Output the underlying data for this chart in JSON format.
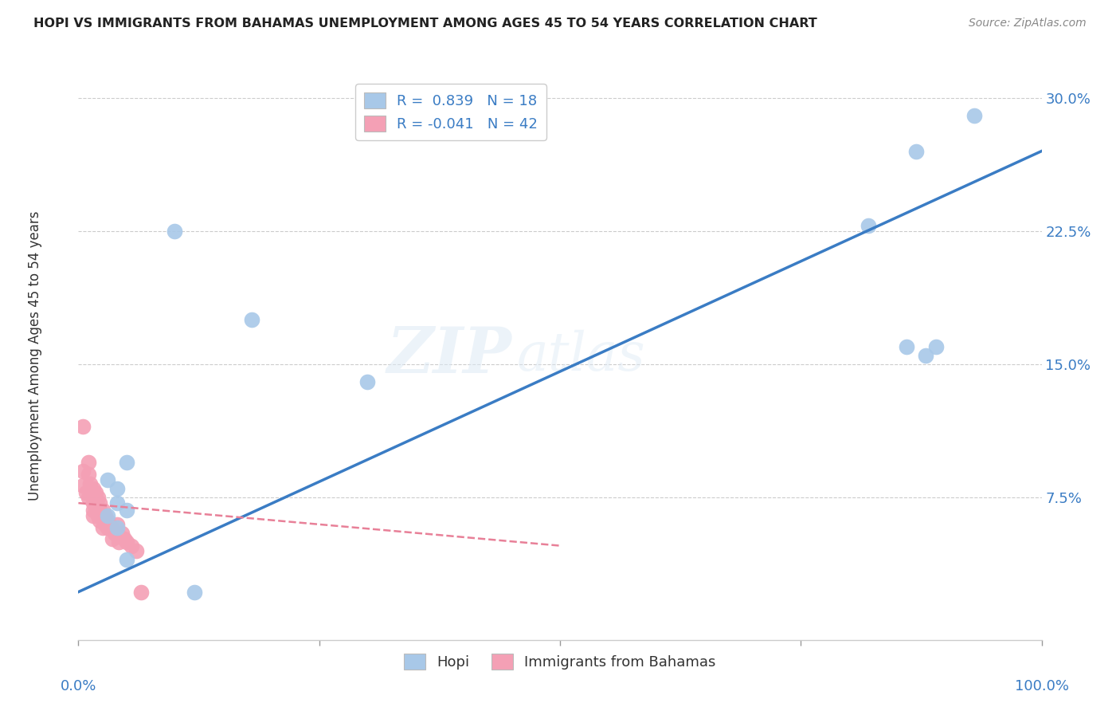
{
  "title": "HOPI VS IMMIGRANTS FROM BAHAMAS UNEMPLOYMENT AMONG AGES 45 TO 54 YEARS CORRELATION CHART",
  "source": "Source: ZipAtlas.com",
  "ylabel": "Unemployment Among Ages 45 to 54 years",
  "xlim": [
    0.0,
    1.0
  ],
  "ylim": [
    -0.005,
    0.315
  ],
  "yticks": [
    0.0,
    0.075,
    0.15,
    0.225,
    0.3
  ],
  "ytick_labels": [
    "",
    "7.5%",
    "15.0%",
    "22.5%",
    "30.0%"
  ],
  "hopi_color": "#a8c8e8",
  "bahamas_color": "#f4a0b5",
  "hopi_line_color": "#3a7cc4",
  "bahamas_line_color": "#e88098",
  "legend_hopi_R": "0.839",
  "legend_hopi_N": "18",
  "legend_bahamas_R": "-0.041",
  "legend_bahamas_N": "42",
  "hopi_x": [
    0.1,
    0.18,
    0.03,
    0.05,
    0.04,
    0.04,
    0.05,
    0.03,
    0.3,
    0.04,
    0.05,
    0.82,
    0.87,
    0.93,
    0.89,
    0.88,
    0.86,
    0.12
  ],
  "hopi_y": [
    0.225,
    0.175,
    0.085,
    0.095,
    0.08,
    0.072,
    0.068,
    0.065,
    0.14,
    0.058,
    0.04,
    0.228,
    0.27,
    0.29,
    0.16,
    0.155,
    0.16,
    0.022
  ],
  "bahamas_x": [
    0.005,
    0.005,
    0.005,
    0.008,
    0.01,
    0.01,
    0.01,
    0.012,
    0.015,
    0.015,
    0.015,
    0.015,
    0.015,
    0.018,
    0.018,
    0.018,
    0.02,
    0.02,
    0.02,
    0.022,
    0.022,
    0.022,
    0.025,
    0.025,
    0.025,
    0.028,
    0.028,
    0.03,
    0.03,
    0.032,
    0.035,
    0.035,
    0.038,
    0.04,
    0.04,
    0.042,
    0.045,
    0.048,
    0.05,
    0.055,
    0.06,
    0.065
  ],
  "bahamas_y": [
    0.115,
    0.09,
    0.082,
    0.078,
    0.095,
    0.088,
    0.075,
    0.083,
    0.08,
    0.075,
    0.072,
    0.068,
    0.065,
    0.078,
    0.072,
    0.068,
    0.075,
    0.07,
    0.065,
    0.072,
    0.068,
    0.062,
    0.068,
    0.063,
    0.058,
    0.065,
    0.06,
    0.062,
    0.058,
    0.06,
    0.058,
    0.052,
    0.055,
    0.06,
    0.055,
    0.05,
    0.055,
    0.052,
    0.05,
    0.048,
    0.045,
    0.022
  ],
  "hopi_line_x": [
    0.0,
    1.0
  ],
  "hopi_line_y": [
    0.022,
    0.27
  ],
  "bahamas_line_x": [
    0.0,
    0.5
  ],
  "bahamas_line_y": [
    0.072,
    0.048
  ],
  "background_color": "#ffffff",
  "grid_color": "#cccccc"
}
